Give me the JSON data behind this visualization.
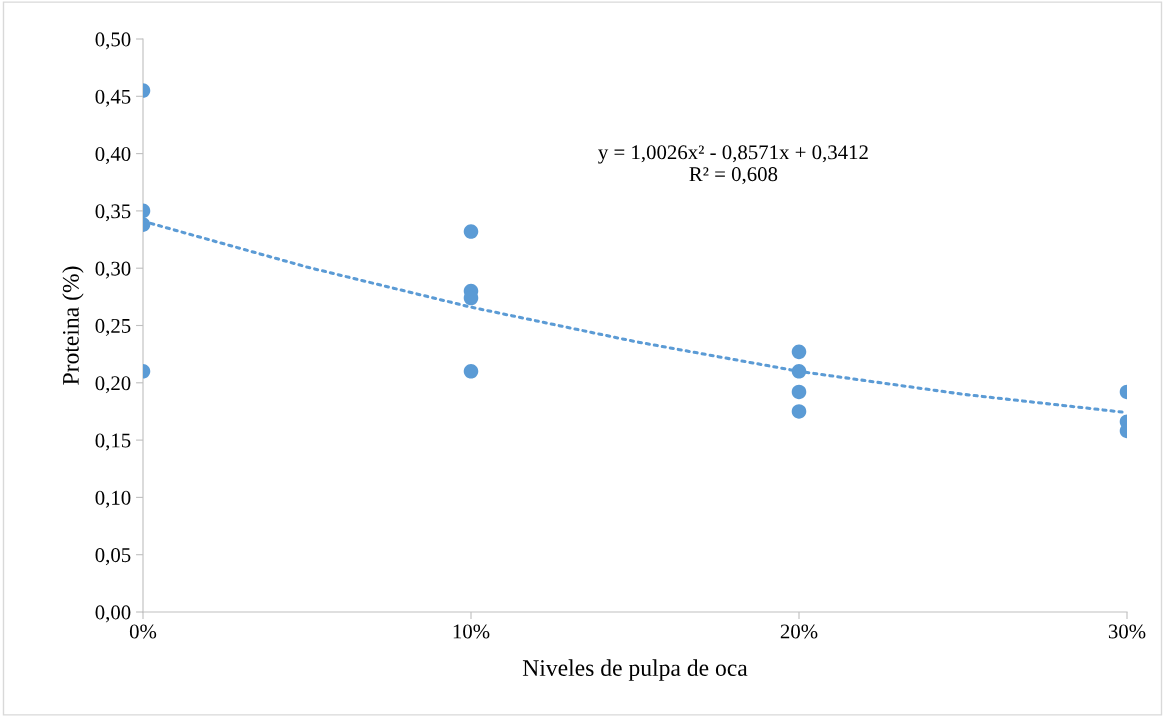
{
  "chart_data": {
    "type": "scatter",
    "xlabel": "Niveles de pulpa de oca",
    "ylabel": "Proteina (%)",
    "series": [
      {
        "type": "scatter",
        "color": "#5b9bd5",
        "marker": "circle",
        "x": [
          0,
          0,
          0,
          0,
          0.1,
          0.1,
          0.1,
          0.1,
          0.2,
          0.2,
          0.2,
          0.2,
          0.3,
          0.3,
          0.3
        ],
        "values": [
          0.455,
          0.35,
          0.338,
          0.21,
          0.332,
          0.28,
          0.274,
          0.21,
          0.227,
          0.21,
          0.192,
          0.175,
          0.192,
          0.166,
          0.158
        ]
      },
      {
        "type": "line",
        "color": "#5b9bd5",
        "line_style": "dotted",
        "marker": "none",
        "x": [
          0,
          0.05,
          0.1,
          0.15,
          0.2,
          0.25,
          0.3
        ],
        "values": [
          0.341,
          0.301,
          0.266,
          0.236,
          0.21,
          0.19,
          0.174
        ]
      }
    ],
    "xlim": [
      0,
      0.3
    ],
    "xticks": [
      {
        "value": 0,
        "label": "0%"
      },
      {
        "value": 0.1,
        "label": "10%"
      },
      {
        "value": 0.2,
        "label": "20%"
      },
      {
        "value": 0.3,
        "label": "30%"
      }
    ],
    "ylim": [
      0,
      0.5
    ],
    "yticks": [
      {
        "value": 0,
        "label": "0,00"
      },
      {
        "value": 0.05,
        "label": "0,05"
      },
      {
        "value": 0.1,
        "label": "0,10"
      },
      {
        "value": 0.15,
        "label": "0,15"
      },
      {
        "value": 0.2,
        "label": "0,20"
      },
      {
        "value": 0.25,
        "label": "0,25"
      },
      {
        "value": 0.3,
        "label": "0,30"
      },
      {
        "value": 0.35,
        "label": "0,35"
      },
      {
        "value": 0.4,
        "label": "0,40"
      },
      {
        "value": 0.45,
        "label": "0,45"
      },
      {
        "value": 0.5,
        "label": "0,50"
      }
    ],
    "grid": false,
    "legend": false,
    "annotations": [
      "y = 1,0026x² - 0,8571x + 0,3412\nR² = 0,608"
    ]
  }
}
